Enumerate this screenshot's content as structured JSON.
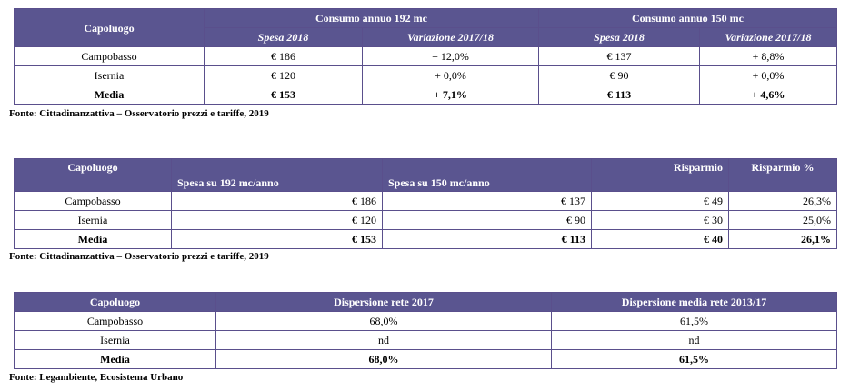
{
  "table1": {
    "header_capoluogo": "Capoluogo",
    "group1": "Consumo annuo 192 mc",
    "group2": "Consumo annuo 150 mc",
    "sub_spesa": "Spesa 2018",
    "sub_var": "Variazione 2017/18",
    "rows": [
      {
        "city": "Campobasso",
        "s1": "€ 186",
        "v1": "+ 12,0%",
        "s2": "€ 137",
        "v2": "+ 8,8%"
      },
      {
        "city": "Isernia",
        "s1": "€ 120",
        "v1": "+ 0,0%",
        "s2": "€ 90",
        "v2": "+ 0,0%"
      },
      {
        "city": "Media",
        "s1": "€ 153",
        "v1": "+ 7,1%",
        "s2": "€ 113",
        "v2": "+ 4,6%"
      }
    ],
    "source": "Fonte: Cittadinanzattiva – Osservatorio prezzi e tariffe, 2019"
  },
  "table2": {
    "h_capoluogo": "Capoluogo",
    "h_spesa192": "Spesa su 192 mc/anno",
    "h_spesa150": "Spesa su 150 mc/anno",
    "h_risparmio": "Risparmio",
    "h_risparmio_pct": "Risparmio %",
    "rows": [
      {
        "city": "Campobasso",
        "s192": "€ 186",
        "s150": "€ 137",
        "ris": "€ 49",
        "pct": "26,3%"
      },
      {
        "city": "Isernia",
        "s192": "€ 120",
        "s150": "€ 90",
        "ris": "€ 30",
        "pct": "25,0%"
      },
      {
        "city": "Media",
        "s192": "€ 153",
        "s150": "€ 113",
        "ris": "€ 40",
        "pct": "26,1%"
      }
    ],
    "source": "Fonte: Cittadinanzattiva – Osservatorio prezzi e tariffe, 2019"
  },
  "table3": {
    "h_capoluogo": "Capoluogo",
    "h_disp2017": "Dispersione rete 2017",
    "h_disp_media": "Dispersione media rete 2013/17",
    "rows": [
      {
        "city": "Campobasso",
        "d2017": "68,0%",
        "dmedia": "61,5%"
      },
      {
        "city": "Isernia",
        "d2017": "nd",
        "dmedia": "nd"
      },
      {
        "city": "Media",
        "d2017": "68,0%",
        "dmedia": "61,5%"
      }
    ],
    "source": "Fonte: Legambiente, Ecosistema Urbano"
  }
}
